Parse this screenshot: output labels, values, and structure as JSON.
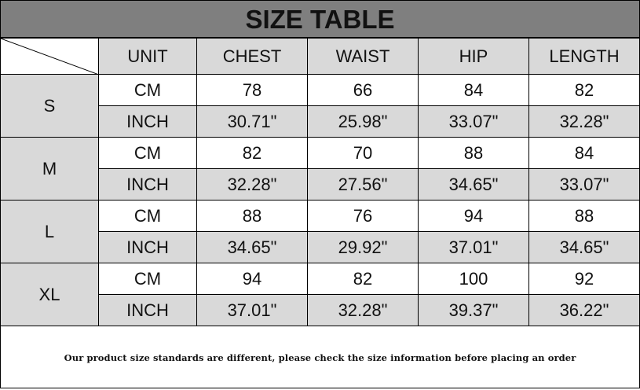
{
  "title": "SIZE TABLE",
  "headers": [
    "UNIT",
    "CHEST",
    "WAIST",
    "HIP",
    "LENGTH"
  ],
  "sizes": [
    {
      "size": "S",
      "rows": [
        {
          "unit": "CM",
          "values": [
            "78",
            "66",
            "84",
            "82"
          ]
        },
        {
          "unit": "INCH",
          "values": [
            "30.71\"",
            "25.98\"",
            "33.07\"",
            "32.28\""
          ]
        }
      ]
    },
    {
      "size": "M",
      "rows": [
        {
          "unit": "CM",
          "values": [
            "82",
            "70",
            "88",
            "84"
          ]
        },
        {
          "unit": "INCH",
          "values": [
            "32.28\"",
            "27.56\"",
            "34.65\"",
            "33.07\""
          ]
        }
      ]
    },
    {
      "size": "L",
      "rows": [
        {
          "unit": "CM",
          "values": [
            "88",
            "76",
            "94",
            "88"
          ]
        },
        {
          "unit": "INCH",
          "values": [
            "34.65\"",
            "29.92\"",
            "37.01\"",
            "34.65\""
          ]
        }
      ]
    },
    {
      "size": "XL",
      "rows": [
        {
          "unit": "CM",
          "values": [
            "94",
            "82",
            "100",
            "92"
          ]
        },
        {
          "unit": "INCH",
          "values": [
            "37.01\"",
            "32.28\"",
            "39.37\"",
            "36.22\""
          ]
        }
      ]
    }
  ],
  "footer": "Our product size standards are different, please check the size information before placing an order",
  "colors": {
    "title_bg": "#7f7f7f",
    "shaded_cell": "#d9d9d9",
    "plain_cell": "#ffffff"
  }
}
